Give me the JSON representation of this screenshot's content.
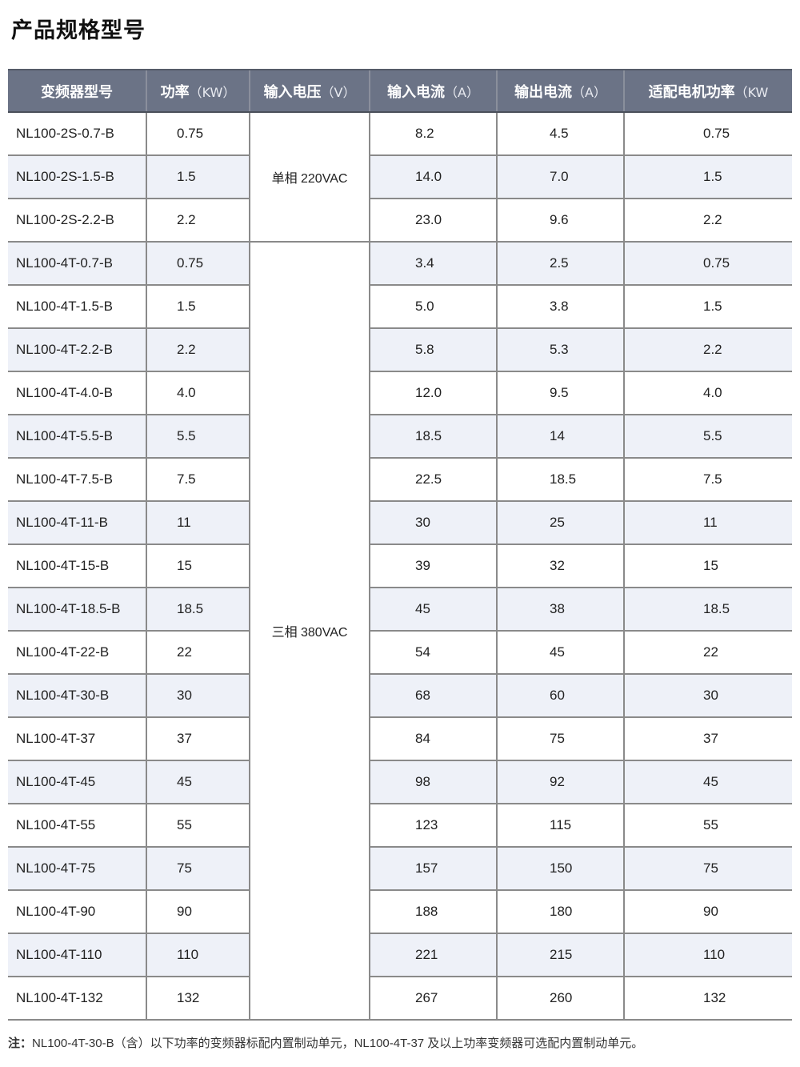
{
  "title": "产品规格型号",
  "headers": [
    {
      "label": "变频器型号",
      "unit": ""
    },
    {
      "label": "功率",
      "unit": "（KW）"
    },
    {
      "label": "输入电压",
      "unit": "（V）"
    },
    {
      "label": "输入电流",
      "unit": "（A）"
    },
    {
      "label": "输出电流",
      "unit": "（A）"
    },
    {
      "label": "适配电机功率",
      "unit": "（KW"
    }
  ],
  "voltage_groups": [
    {
      "label": "单相 220VAC",
      "rows": 3
    },
    {
      "label": "三相 380VAC",
      "rows": 18
    }
  ],
  "rows": [
    [
      "NL100-2S-0.7-B",
      "0.75",
      "8.2",
      "4.5",
      "0.75"
    ],
    [
      "NL100-2S-1.5-B",
      "1.5",
      "14.0",
      "7.0",
      "1.5"
    ],
    [
      "NL100-2S-2.2-B",
      "2.2",
      "23.0",
      "9.6",
      "2.2"
    ],
    [
      "NL100-4T-0.7-B",
      "0.75",
      "3.4",
      "2.5",
      "0.75"
    ],
    [
      "NL100-4T-1.5-B",
      "1.5",
      "5.0",
      "3.8",
      "1.5"
    ],
    [
      "NL100-4T-2.2-B",
      "2.2",
      "5.8",
      "5.3",
      "2.2"
    ],
    [
      "NL100-4T-4.0-B",
      "4.0",
      "12.0",
      "9.5",
      "4.0"
    ],
    [
      "NL100-4T-5.5-B",
      "5.5",
      "18.5",
      "14",
      "5.5"
    ],
    [
      "NL100-4T-7.5-B",
      "7.5",
      "22.5",
      "18.5",
      "7.5"
    ],
    [
      "NL100-4T-11-B",
      "11",
      "30",
      "25",
      "11"
    ],
    [
      "NL100-4T-15-B",
      "15",
      "39",
      "32",
      "15"
    ],
    [
      "NL100-4T-18.5-B",
      "18.5",
      "45",
      "38",
      "18.5"
    ],
    [
      "NL100-4T-22-B",
      "22",
      "54",
      "45",
      "22"
    ],
    [
      "NL100-4T-30-B",
      "30",
      "68",
      "60",
      "30"
    ],
    [
      "NL100-4T-37",
      "37",
      "84",
      "75",
      "37"
    ],
    [
      "NL100-4T-45",
      "45",
      "98",
      "92",
      "45"
    ],
    [
      "NL100-4T-55",
      "55",
      "123",
      "115",
      "55"
    ],
    [
      "NL100-4T-75",
      "75",
      "157",
      "150",
      "75"
    ],
    [
      "NL100-4T-90",
      "90",
      "188",
      "180",
      "90"
    ],
    [
      "NL100-4T-110",
      "110",
      "221",
      "215",
      "110"
    ],
    [
      "NL100-4T-132",
      "132",
      "267",
      "260",
      "132"
    ]
  ],
  "note": {
    "label": "注：",
    "text": "NL100-4T-30-B（含）以下功率的变频器标配内置制动单元，NL100-4T-37 及以上功率变频器可选配内置制动单元。"
  },
  "colors": {
    "header_bg": "#6b7386",
    "alt_row_bg": "#eef1f8"
  }
}
